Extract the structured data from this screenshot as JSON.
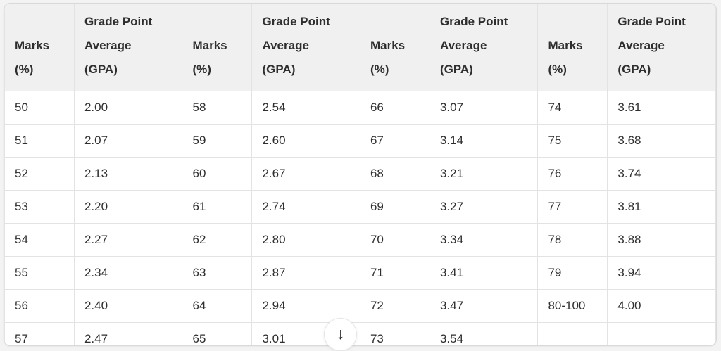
{
  "table": {
    "headers": [
      {
        "type": "marks",
        "lines": [
          "Marks",
          "(%)"
        ]
      },
      {
        "type": "gpa",
        "lines": [
          "Grade Point",
          "Average",
          "(GPA)"
        ]
      },
      {
        "type": "marks",
        "lines": [
          "Marks",
          "(%)"
        ]
      },
      {
        "type": "gpa",
        "lines": [
          "Grade Point",
          "Average",
          "(GPA)"
        ]
      },
      {
        "type": "marks",
        "lines": [
          "Marks",
          "(%)"
        ]
      },
      {
        "type": "gpa",
        "lines": [
          "Grade Point",
          "Average",
          "(GPA)"
        ]
      },
      {
        "type": "marks",
        "lines": [
          "Marks",
          "(%)"
        ]
      },
      {
        "type": "gpa",
        "lines": [
          "Grade Point",
          "Average",
          "(GPA)"
        ]
      }
    ],
    "rows": [
      [
        "50",
        "2.00",
        "58",
        "2.54",
        "66",
        "3.07",
        "74",
        "3.61"
      ],
      [
        "51",
        "2.07",
        "59",
        "2.60",
        "67",
        "3.14",
        "75",
        "3.68"
      ],
      [
        "52",
        "2.13",
        "60",
        "2.67",
        "68",
        "3.21",
        "76",
        "3.74"
      ],
      [
        "53",
        "2.20",
        "61",
        "2.74",
        "69",
        "3.27",
        "77",
        "3.81"
      ],
      [
        "54",
        "2.27",
        "62",
        "2.80",
        "70",
        "3.34",
        "78",
        "3.88"
      ],
      [
        "55",
        "2.34",
        "63",
        "2.87",
        "71",
        "3.41",
        "79",
        "3.94"
      ],
      [
        "56",
        "2.40",
        "64",
        "2.94",
        "72",
        "3.47",
        "80-100",
        "4.00"
      ],
      [
        "57",
        "2.47",
        "65",
        "3.01",
        "73",
        "3.54",
        "",
        ""
      ]
    ]
  },
  "scroll_button": {
    "icon": "↓"
  },
  "colors": {
    "header_bg": "#f0f0f0",
    "grid_line": "#e3e3e3",
    "text": "#2e2e2e",
    "table_border": "#d9d9d9"
  }
}
